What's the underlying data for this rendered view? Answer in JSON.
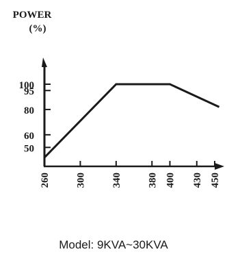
{
  "chart_data": {
    "type": "line",
    "title": "",
    "ylabel_line1": "POWER",
    "ylabel_line2": "(%)",
    "xlabel": "",
    "y_ticks": [
      50,
      60,
      80,
      95,
      100
    ],
    "x_ticks": [
      260,
      300,
      340,
      380,
      400,
      430,
      450
    ],
    "xlim": [
      260,
      455
    ],
    "ylim": [
      35,
      120
    ],
    "grid": false,
    "series": [
      {
        "x": [
          260,
          340,
          400,
          455
        ],
        "y": [
          42,
          100,
          100,
          82
        ],
        "color": "#1a1a1a"
      }
    ]
  },
  "caption": "Model: 9KVA~30KVA"
}
